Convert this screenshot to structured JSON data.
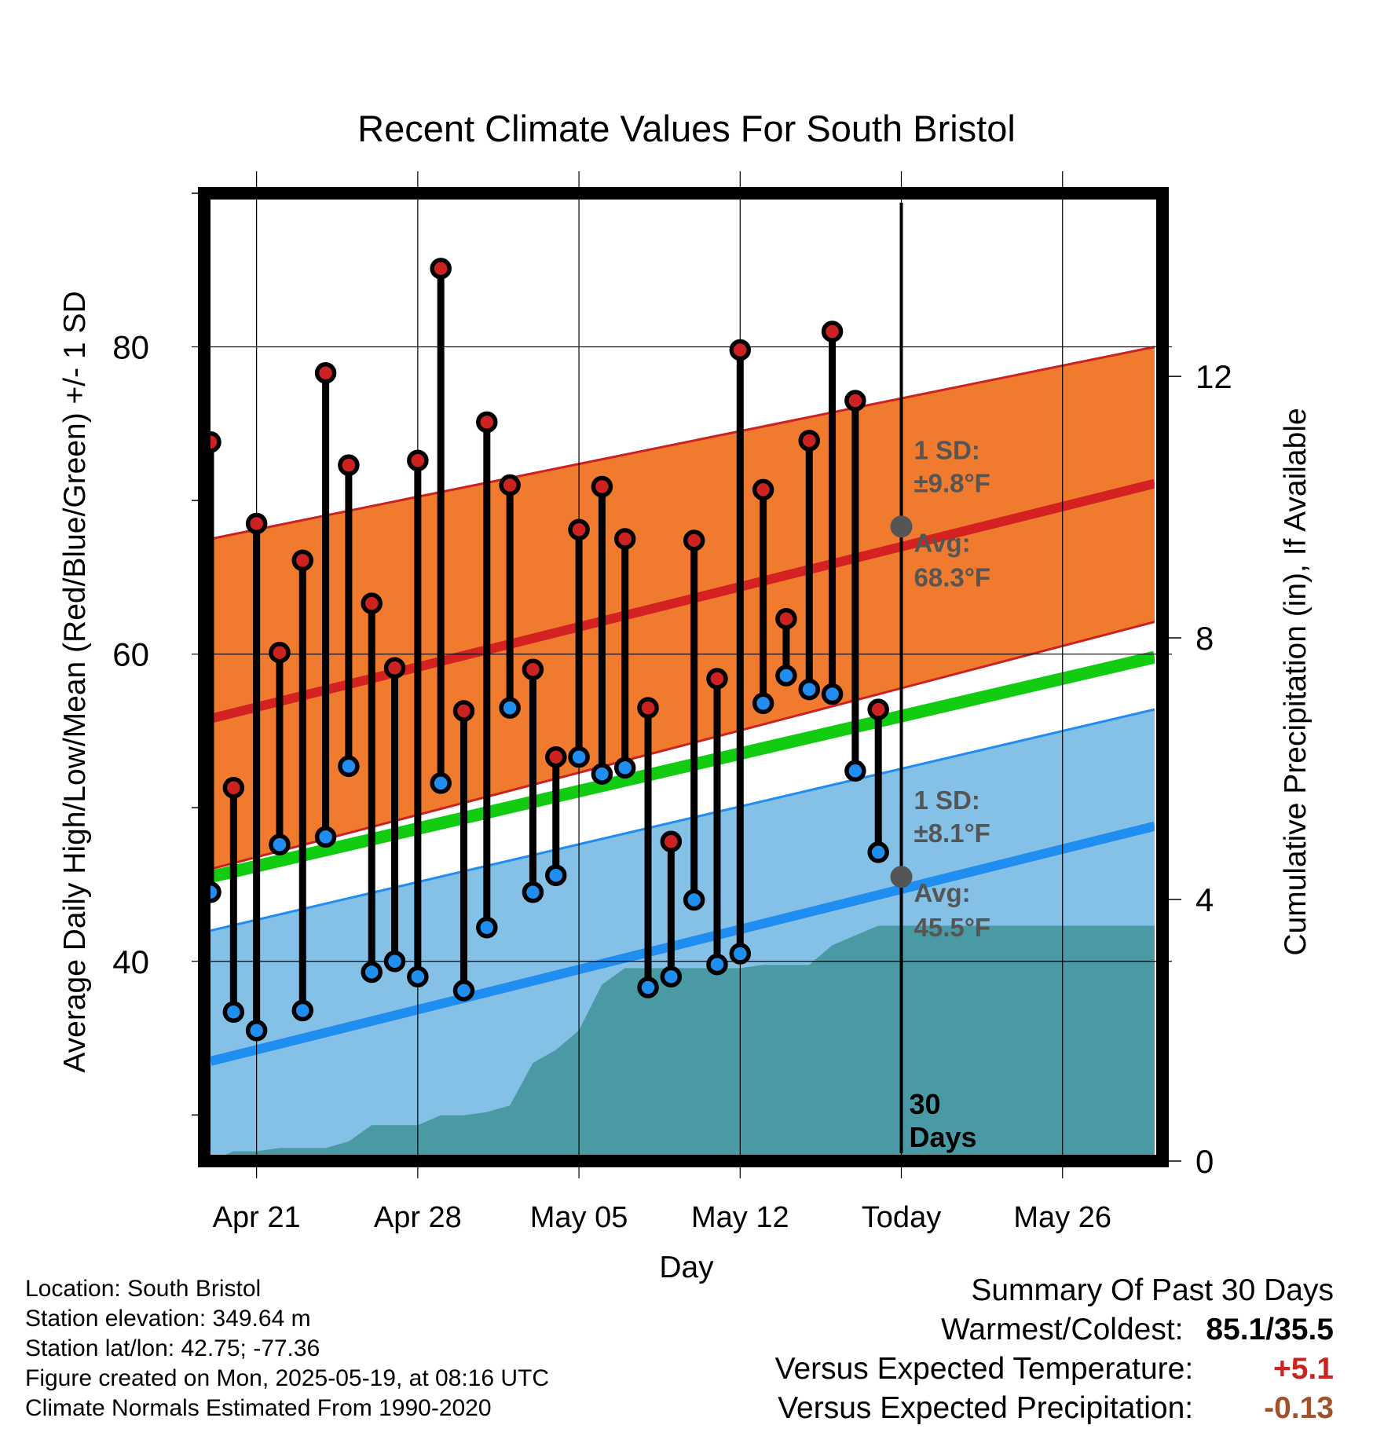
{
  "chart_data": {
    "type": "line",
    "title": "Recent Climate Values For South Bristol",
    "xlabel": "Day",
    "ylabel": "Average Daily High/Low/Mean (Red/Blue/Green) +/- 1 SD",
    "y2label": "Cumulative Precipitation (in), If Available",
    "x_start": "2025-04-19",
    "x_end": "2025-05-30",
    "x_ticks": [
      {
        "date": "2025-04-21",
        "label": "Apr 21"
      },
      {
        "date": "2025-04-28",
        "label": "Apr 28"
      },
      {
        "date": "2025-05-05",
        "label": "May 05"
      },
      {
        "date": "2025-05-12",
        "label": "May 12"
      },
      {
        "date": "2025-05-19",
        "label": "Today"
      },
      {
        "date": "2025-05-26",
        "label": "May 26"
      }
    ],
    "ylim": [
      27,
      90
    ],
    "y_ticks": [
      40,
      60,
      80
    ],
    "y_minor_ticks": [
      30,
      50,
      70,
      90
    ],
    "y2lim": [
      0,
      14.8
    ],
    "y2_ticks": [
      0,
      4,
      8,
      12
    ],
    "grid": true,
    "today": "2025-05-19",
    "today_label": "30 Days",
    "normals": {
      "high_avg": {
        "start": 55.8,
        "end": 71.1,
        "color": "#d42222"
      },
      "high_band": {
        "lower_start": 46.0,
        "lower_end": 62.1,
        "upper_start": 67.5,
        "upper_end": 80.0,
        "color": "#f07b2e"
      },
      "mean_avg": {
        "start": 45.5,
        "end": 59.8,
        "color": "#11cc11"
      },
      "low_avg": {
        "start": 33.5,
        "end": 48.8,
        "color": "#1f8ef0"
      },
      "low_band": {
        "lower_start": 25.0,
        "lower_end": 41.2,
        "upper_start": 42.0,
        "upper_end": 56.4,
        "color": "#85c1e6"
      }
    },
    "annotations": [
      {
        "sd_label": "1 SD:",
        "sd_value": "±9.8°F",
        "avg_label": "Avg:",
        "avg_value": "68.3°F",
        "marker_value": 68.3
      },
      {
        "sd_label": "1 SD:",
        "sd_value": "±8.1°F",
        "avg_label": "Avg:",
        "avg_value": "45.5°F",
        "marker_value": 45.5
      }
    ],
    "series": [
      {
        "name": "Daily High",
        "color": "#cc2222",
        "x": [
          "2025-04-19",
          "2025-04-20",
          "2025-04-21",
          "2025-04-22",
          "2025-04-23",
          "2025-04-24",
          "2025-04-25",
          "2025-04-26",
          "2025-04-27",
          "2025-04-28",
          "2025-04-29",
          "2025-04-30",
          "2025-05-01",
          "2025-05-02",
          "2025-05-03",
          "2025-05-04",
          "2025-05-05",
          "2025-05-06",
          "2025-05-07",
          "2025-05-08",
          "2025-05-09",
          "2025-05-10",
          "2025-05-11",
          "2025-05-12",
          "2025-05-13",
          "2025-05-14",
          "2025-05-15",
          "2025-05-16",
          "2025-05-17",
          "2025-05-18"
        ],
        "values": [
          73.8,
          51.3,
          68.5,
          60.1,
          66.1,
          78.3,
          72.3,
          63.3,
          59.1,
          72.6,
          85.1,
          56.3,
          75.1,
          71.0,
          59.0,
          53.3,
          68.1,
          70.9,
          67.5,
          56.5,
          47.8,
          67.4,
          58.4,
          79.8,
          70.7,
          62.3,
          73.9,
          81.0,
          76.5,
          56.4
        ]
      },
      {
        "name": "Daily Low",
        "color": "#1f8ef0",
        "x": [
          "2025-04-19",
          "2025-04-20",
          "2025-04-21",
          "2025-04-22",
          "2025-04-23",
          "2025-04-24",
          "2025-04-25",
          "2025-04-26",
          "2025-04-27",
          "2025-04-28",
          "2025-04-29",
          "2025-04-30",
          "2025-05-01",
          "2025-05-02",
          "2025-05-03",
          "2025-05-04",
          "2025-05-05",
          "2025-05-06",
          "2025-05-07",
          "2025-05-08",
          "2025-05-09",
          "2025-05-10",
          "2025-05-11",
          "2025-05-12",
          "2025-05-13",
          "2025-05-14",
          "2025-05-15",
          "2025-05-16",
          "2025-05-17",
          "2025-05-18"
        ],
        "values": [
          44.5,
          36.7,
          35.5,
          47.6,
          36.8,
          48.1,
          52.7,
          39.3,
          40.0,
          39.0,
          51.6,
          38.1,
          42.2,
          56.5,
          44.5,
          45.6,
          53.3,
          52.2,
          52.6,
          38.3,
          39.0,
          44.0,
          39.8,
          40.5,
          56.8,
          58.6,
          57.7,
          57.4,
          52.4,
          47.1
        ]
      },
      {
        "name": "Cumulative Precipitation",
        "color": "#4a9aa5",
        "x": [
          "2025-04-19",
          "2025-04-20",
          "2025-04-21",
          "2025-04-22",
          "2025-04-23",
          "2025-04-24",
          "2025-04-25",
          "2025-04-26",
          "2025-04-27",
          "2025-04-28",
          "2025-04-29",
          "2025-04-30",
          "2025-05-01",
          "2025-05-02",
          "2025-05-03",
          "2025-05-04",
          "2025-05-05",
          "2025-05-06",
          "2025-05-07",
          "2025-05-08",
          "2025-05-09",
          "2025-05-10",
          "2025-05-11",
          "2025-05-12",
          "2025-05-13",
          "2025-05-14",
          "2025-05-15",
          "2025-05-16",
          "2025-05-17",
          "2025-05-18",
          "2025-05-19"
        ],
        "values": [
          0.0,
          0.15,
          0.15,
          0.2,
          0.2,
          0.2,
          0.3,
          0.55,
          0.55,
          0.55,
          0.7,
          0.7,
          0.75,
          0.85,
          1.5,
          1.7,
          2.0,
          2.7,
          2.95,
          2.95,
          2.95,
          2.95,
          2.95,
          2.95,
          3.0,
          3.0,
          3.0,
          3.3,
          3.45,
          3.6,
          3.6
        ]
      }
    ]
  },
  "footer": {
    "location": "Location: South Bristol",
    "elevation": "Station elevation: 349.64 m",
    "latlon": "Station lat/lon: 42.75; -77.36",
    "created": "Figure created on Mon, 2025-05-19, at 08:16 UTC",
    "normals": "Climate Normals Estimated From 1990-2020"
  },
  "summary": {
    "title": "Summary Of Past 30 Days",
    "warmest_coldest_label": "Warmest/Coldest:",
    "warmest_coldest_value": "85.1/35.5",
    "temp_label": "Versus Expected Temperature:",
    "temp_value": "+5.1",
    "temp_color": "#cc2222",
    "precip_label": "Versus Expected Precipitation:",
    "precip_value": "-0.13",
    "precip_color": "#a0522d"
  }
}
